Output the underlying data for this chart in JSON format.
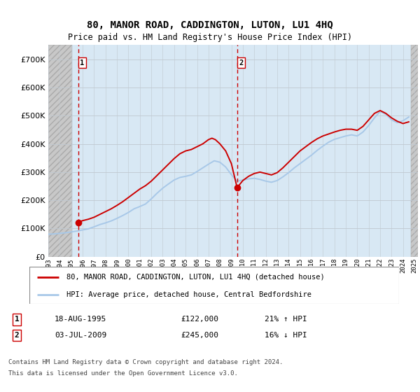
{
  "title": "80, MANOR ROAD, CADDINGTON, LUTON, LU1 4HQ",
  "subtitle": "Price paid vs. HM Land Registry's House Price Index (HPI)",
  "ylim": [
    0,
    750000
  ],
  "yticks": [
    0,
    100000,
    200000,
    300000,
    400000,
    500000,
    600000,
    700000
  ],
  "sale1_date": 1995.625,
  "sale1_price": 122000,
  "sale2_date": 2009.5,
  "sale2_price": 245000,
  "hpi_line_color": "#a8c8e8",
  "price_line_color": "#cc0000",
  "dot_color": "#cc0000",
  "sale_vline_color": "#cc0000",
  "grid_color": "#c0c8d0",
  "legend_label1": "80, MANOR ROAD, CADDINGTON, LUTON, LU1 4HQ (detached house)",
  "legend_label2": "HPI: Average price, detached house, Central Bedfordshire",
  "footnote1": "Contains HM Land Registry data © Crown copyright and database right 2024.",
  "footnote2": "This data is licensed under the Open Government Licence v3.0.",
  "plot_bg_color": "#d8e8f4",
  "xmin": 1993,
  "xmax": 2025.3,
  "hatch_left_end": 1995.1,
  "hatch_right_start": 2024.7,
  "hpi_data_x": [
    1993.0,
    1993.5,
    1994.0,
    1994.5,
    1995.0,
    1995.5,
    1996.0,
    1996.5,
    1997.0,
    1997.5,
    1998.0,
    1998.5,
    1999.0,
    1999.5,
    2000.0,
    2000.5,
    2001.0,
    2001.5,
    2002.0,
    2002.5,
    2003.0,
    2003.5,
    2004.0,
    2004.5,
    2005.0,
    2005.5,
    2006.0,
    2006.5,
    2007.0,
    2007.5,
    2008.0,
    2008.5,
    2009.0,
    2009.5,
    2010.0,
    2010.5,
    2011.0,
    2011.5,
    2012.0,
    2012.5,
    2013.0,
    2013.5,
    2014.0,
    2014.5,
    2015.0,
    2015.5,
    2016.0,
    2016.5,
    2017.0,
    2017.5,
    2018.0,
    2018.5,
    2019.0,
    2019.5,
    2020.0,
    2020.5,
    2021.0,
    2021.5,
    2022.0,
    2022.5,
    2023.0,
    2023.5,
    2024.0,
    2024.5
  ],
  "hpi_data_y": [
    80000,
    81000,
    83000,
    85000,
    88000,
    91000,
    95000,
    99000,
    106000,
    114000,
    120000,
    127000,
    136000,
    146000,
    157000,
    170000,
    178000,
    187000,
    205000,
    225000,
    243000,
    258000,
    272000,
    281000,
    285000,
    290000,
    302000,
    315000,
    328000,
    340000,
    335000,
    318000,
    291000,
    268000,
    272000,
    276000,
    278000,
    274000,
    268000,
    264000,
    270000,
    283000,
    298000,
    315000,
    330000,
    345000,
    360000,
    377000,
    392000,
    406000,
    416000,
    422000,
    428000,
    432000,
    428000,
    442000,
    465000,
    492000,
    515000,
    505000,
    485000,
    475000,
    482000,
    495000
  ],
  "price_data_x": [
    1995.625,
    1996.0,
    1996.5,
    1997.0,
    1997.5,
    1998.0,
    1998.5,
    1999.0,
    1999.5,
    2000.0,
    2000.5,
    2001.0,
    2001.5,
    2002.0,
    2002.5,
    2003.0,
    2003.5,
    2004.0,
    2004.5,
    2005.0,
    2005.5,
    2006.0,
    2006.5,
    2007.0,
    2007.3,
    2007.6,
    2008.0,
    2008.5,
    2009.0,
    2009.5,
    2010.0,
    2010.5,
    2011.0,
    2011.5,
    2012.0,
    2012.5,
    2013.0,
    2013.5,
    2014.0,
    2014.5,
    2015.0,
    2015.5,
    2016.0,
    2016.5,
    2017.0,
    2017.5,
    2018.0,
    2018.5,
    2019.0,
    2019.5,
    2020.0,
    2020.5,
    2021.0,
    2021.5,
    2022.0,
    2022.5,
    2023.0,
    2023.5,
    2024.0,
    2024.5
  ],
  "price_data_y": [
    122000,
    128000,
    133000,
    140000,
    150000,
    160000,
    170000,
    182000,
    195000,
    210000,
    225000,
    240000,
    252000,
    268000,
    288000,
    308000,
    328000,
    348000,
    365000,
    375000,
    380000,
    390000,
    400000,
    415000,
    420000,
    415000,
    400000,
    375000,
    330000,
    245000,
    270000,
    285000,
    295000,
    300000,
    295000,
    290000,
    298000,
    315000,
    335000,
    355000,
    375000,
    390000,
    405000,
    418000,
    428000,
    435000,
    442000,
    448000,
    452000,
    452000,
    448000,
    462000,
    485000,
    508000,
    518000,
    508000,
    492000,
    480000,
    472000,
    478000
  ]
}
